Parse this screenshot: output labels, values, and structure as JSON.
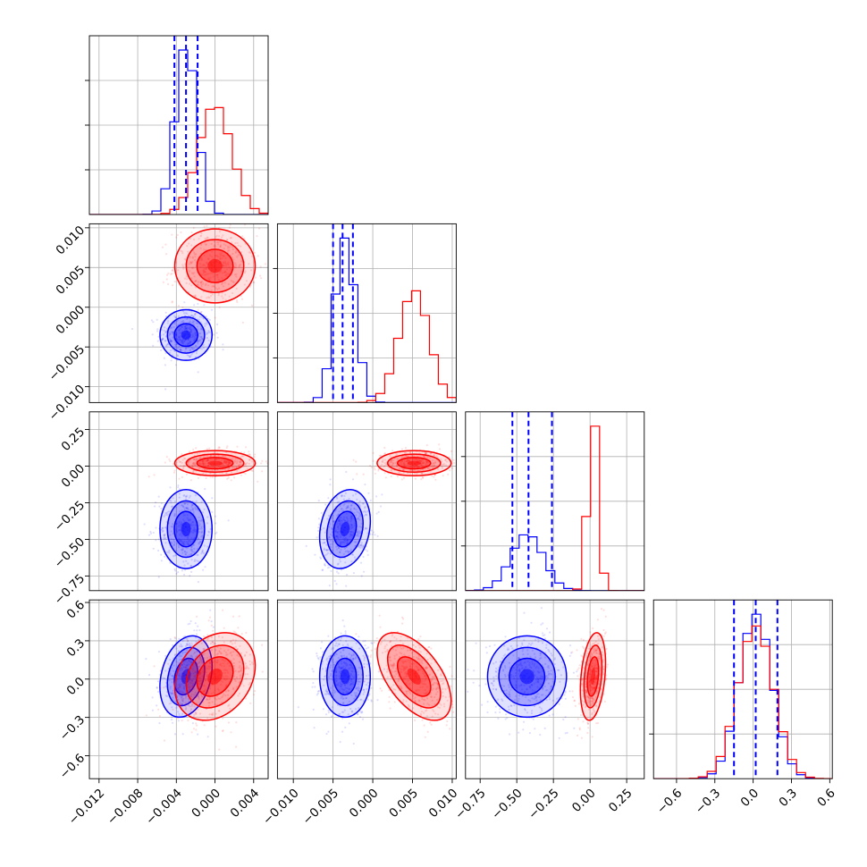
{
  "chart_data": {
    "type": "corner",
    "grid": true,
    "colors": {
      "blue": "#0000ff",
      "red": "#ff0000"
    },
    "parameters": [
      {
        "ticks": [
          -0.012,
          -0.008,
          -0.004,
          0.0,
          0.004
        ],
        "tick_labels": [
          "−0.012",
          "−0.008",
          "−0.004",
          "0.000",
          "0.004"
        ],
        "range": [
          -0.013,
          0.0055
        ]
      },
      {
        "ticks": [
          -0.01,
          -0.005,
          0.0,
          0.005,
          0.01
        ],
        "tick_labels": [
          "−0.010",
          "−0.005",
          "0.000",
          "0.005",
          "0.010"
        ],
        "range": [
          -0.012,
          0.0105
        ]
      },
      {
        "ticks": [
          -0.75,
          -0.5,
          -0.25,
          0.0,
          0.25
        ],
        "tick_labels": [
          "−0.75",
          "−0.50",
          "−0.25",
          "0.00",
          "0.25"
        ],
        "range": [
          -0.85,
          0.37
        ]
      },
      {
        "ticks": [
          -0.6,
          -0.3,
          0.0,
          0.3,
          0.6
        ],
        "tick_labels": [
          "−0.6",
          "−0.3",
          "0.0",
          "0.3",
          "0.6"
        ],
        "range": [
          -0.78,
          0.62
        ]
      }
    ],
    "series": [
      {
        "color": "blue",
        "mean": [
          -0.003,
          -0.0035,
          -0.43,
          0.02
        ],
        "std": [
          0.0011,
          0.0013,
          0.11,
          0.13
        ],
        "corr": {
          "0-1": 0.0,
          "0-2": 0.0,
          "0-3": 0.25,
          "1-2": 0.2,
          "1-3": 0.0,
          "2-3": 0.0
        },
        "quantiles": [
          [
            -0.0042,
            -0.003,
            -0.0018
          ],
          [
            -0.005,
            -0.0038,
            -0.0025
          ],
          [
            -0.53,
            -0.42,
            -0.26
          ],
          [
            -0.15,
            0.02,
            0.19
          ]
        ]
      },
      {
        "color": "red",
        "mean": [
          0.0,
          0.0052,
          0.02,
          0.02
        ],
        "std": [
          0.0017,
          0.0019,
          0.035,
          0.14
        ],
        "corr": {
          "0-1": 0.0,
          "0-2": 0.0,
          "0-3": 0.25,
          "1-2": 0.0,
          "1-3": -0.55,
          "2-3": 0.3
        },
        "quantiles": []
      }
    ]
  }
}
